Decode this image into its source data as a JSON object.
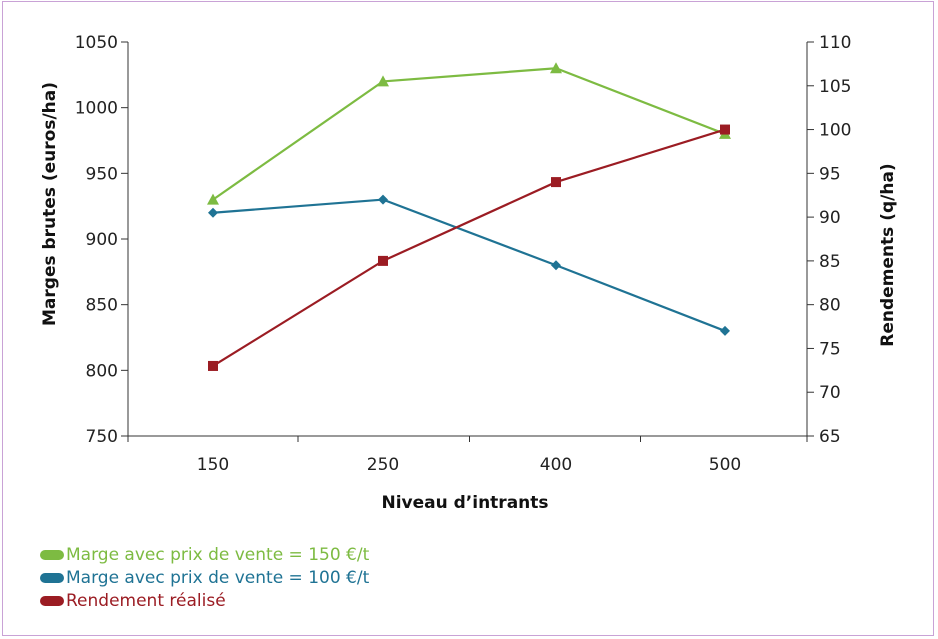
{
  "chart_data": {
    "type": "line",
    "xlabel": "Niveau d’intrants",
    "ylabel": "Marges brutes (euros/ha)",
    "y2label": "Rendements (q/ha)",
    "categories": [
      "150",
      "250",
      "400",
      "500"
    ],
    "ylim": [
      750,
      1050
    ],
    "yticks": [
      "750",
      "800",
      "850",
      "900",
      "950",
      "1000",
      "1050"
    ],
    "y2lim": [
      65,
      110
    ],
    "y2ticks": [
      "65",
      "70",
      "75",
      "80",
      "85",
      "90",
      "95",
      "100",
      "105",
      "110"
    ],
    "grid": false,
    "legend_position": "bottom-left",
    "series": [
      {
        "name": "Marge avec prix de vente = 150 €/t",
        "axis": "left",
        "marker": "triangle",
        "color": "#7dbb42",
        "values": [
          930,
          1020,
          1030,
          980
        ]
      },
      {
        "name": "Marge avec prix de vente = 100 €/t",
        "axis": "left",
        "marker": "diamond",
        "color": "#1f7394",
        "values": [
          920,
          930,
          880,
          830
        ]
      },
      {
        "name": "Rendement réalisé",
        "axis": "right",
        "marker": "square",
        "color": "#9b1c23",
        "values": [
          73,
          85,
          94,
          100
        ]
      }
    ]
  }
}
